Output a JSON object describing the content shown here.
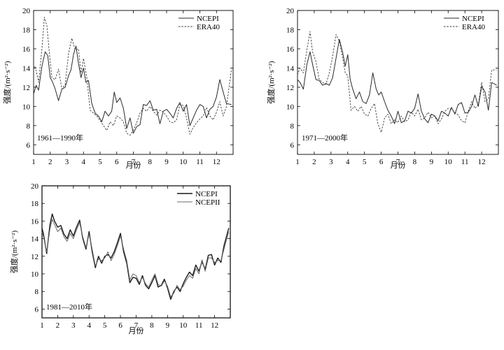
{
  "chart_data": [
    {
      "type": "line",
      "panel_label": "1961—1990年",
      "xlabel": "月份",
      "ylabel": "强度/(m²·s⁻²)",
      "xlim": [
        1,
        13
      ],
      "ylim": [
        5,
        20
      ],
      "x_ticks": [
        "1",
        "2",
        "3",
        "4",
        "5",
        "6",
        "7",
        "8",
        "9",
        "10",
        "11",
        "12"
      ],
      "y_ticks": [
        "6",
        "8",
        "10",
        "12",
        "14",
        "16",
        "18",
        "20"
      ],
      "legend_position": "top-right",
      "series": [
        {
          "name": "NCEPI",
          "style": "solid",
          "x": [
            1.0,
            1.15,
            1.3,
            1.5,
            1.7,
            1.85,
            2.0,
            2.15,
            2.3,
            2.5,
            2.7,
            2.9,
            3.1,
            3.25,
            3.4,
            3.55,
            3.7,
            3.85,
            4.0,
            4.15,
            4.3,
            4.5,
            4.7,
            4.9,
            5.1,
            5.3,
            5.5,
            5.7,
            5.85,
            6.0,
            6.2,
            6.4,
            6.6,
            6.8,
            7.0,
            7.2,
            7.4,
            7.6,
            7.8,
            8.0,
            8.2,
            8.4,
            8.6,
            8.8,
            9.0,
            9.2,
            9.4,
            9.6,
            9.8,
            10.0,
            10.2,
            10.4,
            10.6,
            10.8,
            11.0,
            11.2,
            11.4,
            11.6,
            11.8,
            12.0,
            12.2,
            12.4,
            12.6,
            12.9
          ],
          "values": [
            11.3,
            12.2,
            11.7,
            14.2,
            15.7,
            15.3,
            13.0,
            12.5,
            11.8,
            10.6,
            11.8,
            12.0,
            13.2,
            13.8,
            15.4,
            16.3,
            14.5,
            13.0,
            14.0,
            12.5,
            12.7,
            10.3,
            9.3,
            9.0,
            8.4,
            9.5,
            9.0,
            9.5,
            11.5,
            10.4,
            10.9,
            9.8,
            7.7,
            8.8,
            7.2,
            7.9,
            8.1,
            10.2,
            10.1,
            10.6,
            9.6,
            9.7,
            8.2,
            9.5,
            9.7,
            9.3,
            8.8,
            9.8,
            10.4,
            9.5,
            10.2,
            8.0,
            8.8,
            9.6,
            10.2,
            10.0,
            8.8,
            9.7,
            10.0,
            11.0,
            12.8,
            11.5,
            10.3,
            10.2
          ]
        },
        {
          "name": "ERA40",
          "style": "dashed",
          "x": [
            1.0,
            1.1,
            1.3,
            1.5,
            1.65,
            1.8,
            1.95,
            2.1,
            2.3,
            2.5,
            2.7,
            2.9,
            3.1,
            3.3,
            3.5,
            3.7,
            3.85,
            4.0,
            4.2,
            4.4,
            4.6,
            4.8,
            5.0,
            5.2,
            5.4,
            5.6,
            5.8,
            6.0,
            6.2,
            6.4,
            6.6,
            6.8,
            7.0,
            7.2,
            7.4,
            7.6,
            7.8,
            8.0,
            8.2,
            8.4,
            8.6,
            8.8,
            9.0,
            9.2,
            9.4,
            9.6,
            9.8,
            10.0,
            10.2,
            10.4,
            10.6,
            10.8,
            11.0,
            11.2,
            11.4,
            11.6,
            11.8,
            12.0,
            12.2,
            12.4,
            12.6,
            12.9
          ],
          "values": [
            14.0,
            14.2,
            12.5,
            16.0,
            19.3,
            18.4,
            15.5,
            13.0,
            12.8,
            13.9,
            11.8,
            12.3,
            15.5,
            17.1,
            15.9,
            16.0,
            13.5,
            15.0,
            13.0,
            9.6,
            9.3,
            9.0,
            8.5,
            8.0,
            7.5,
            8.4,
            8.0,
            9.0,
            8.8,
            8.4,
            7.2,
            7.0,
            7.5,
            8.3,
            9.3,
            9.8,
            9.5,
            10.0,
            9.5,
            9.1,
            9.6,
            9.4,
            9.0,
            8.4,
            8.3,
            8.6,
            10.2,
            10.1,
            8.8,
            7.1,
            7.8,
            8.3,
            8.7,
            9.0,
            9.9,
            9.0,
            8.6,
            9.4,
            10.5,
            9.0,
            10.0,
            13.8
          ]
        }
      ]
    },
    {
      "type": "line",
      "panel_label": "1971—2000年",
      "xlabel": "月份",
      "ylabel": "强度/(m²·s⁻²)",
      "xlim": [
        1,
        13
      ],
      "ylim": [
        5,
        20
      ],
      "x_ticks": [
        "1",
        "2",
        "3",
        "4",
        "5",
        "6",
        "7",
        "8",
        "9",
        "10",
        "11",
        "12"
      ],
      "y_ticks": [
        "6",
        "8",
        "10",
        "12",
        "14",
        "16",
        "18",
        "20"
      ],
      "legend_position": "top-right",
      "series": [
        {
          "name": "NCEPI",
          "style": "solid",
          "x": [
            1.0,
            1.15,
            1.35,
            1.55,
            1.75,
            1.9,
            2.1,
            2.3,
            2.5,
            2.7,
            2.9,
            3.1,
            3.3,
            3.5,
            3.7,
            3.85,
            4.0,
            4.15,
            4.3,
            4.5,
            4.7,
            4.9,
            5.1,
            5.3,
            5.5,
            5.7,
            5.85,
            6.0,
            6.2,
            6.4,
            6.6,
            6.8,
            7.0,
            7.2,
            7.4,
            7.6,
            7.8,
            8.0,
            8.2,
            8.4,
            8.6,
            8.8,
            9.0,
            9.2,
            9.4,
            9.6,
            9.8,
            10.0,
            10.2,
            10.4,
            10.6,
            10.8,
            11.0,
            11.2,
            11.4,
            11.6,
            11.8,
            12.0,
            12.2,
            12.4,
            12.6,
            12.9
          ],
          "values": [
            12.8,
            12.5,
            11.8,
            14.3,
            15.7,
            14.4,
            12.8,
            12.7,
            12.2,
            12.4,
            12.2,
            13.0,
            15.0,
            17.0,
            15.6,
            14.2,
            15.4,
            12.8,
            11.8,
            10.8,
            11.5,
            10.5,
            10.3,
            11.2,
            13.5,
            11.8,
            11.2,
            11.5,
            10.5,
            9.6,
            9.0,
            8.2,
            9.5,
            8.3,
            8.5,
            9.5,
            9.3,
            9.8,
            11.3,
            9.5,
            8.7,
            8.3,
            9.2,
            9.0,
            8.5,
            9.5,
            9.3,
            9.0,
            9.9,
            9.2,
            10.2,
            10.4,
            9.3,
            9.4,
            10.0,
            11.2,
            10.0,
            12.1,
            11.5,
            9.6,
            12.5,
            12.2
          ]
        },
        {
          "name": "ERA40",
          "style": "dashed",
          "x": [
            1.0,
            1.15,
            1.35,
            1.55,
            1.75,
            1.9,
            2.1,
            2.3,
            2.5,
            2.7,
            2.9,
            3.1,
            3.3,
            3.5,
            3.7,
            3.85,
            4.0,
            4.2,
            4.4,
            4.6,
            4.8,
            5.0,
            5.2,
            5.4,
            5.6,
            5.8,
            6.0,
            6.2,
            6.4,
            6.6,
            6.8,
            7.0,
            7.2,
            7.4,
            7.6,
            7.8,
            8.0,
            8.2,
            8.4,
            8.6,
            8.8,
            9.0,
            9.2,
            9.4,
            9.6,
            9.8,
            10.0,
            10.2,
            10.4,
            10.6,
            10.8,
            11.0,
            11.2,
            11.4,
            11.6,
            11.8,
            12.0,
            12.2,
            12.4,
            12.6,
            12.9
          ],
          "values": [
            13.3,
            14.0,
            13.5,
            15.8,
            17.8,
            15.7,
            14.7,
            12.8,
            12.5,
            12.3,
            13.5,
            15.2,
            17.5,
            16.8,
            15.0,
            13.5,
            13.2,
            9.6,
            10.0,
            9.5,
            10.0,
            9.2,
            9.0,
            9.8,
            10.3,
            8.2,
            7.3,
            8.8,
            9.2,
            8.2,
            8.6,
            8.3,
            9.0,
            8.4,
            8.6,
            9.4,
            9.0,
            9.7,
            8.6,
            8.8,
            9.4,
            8.8,
            9.0,
            8.2,
            8.7,
            9.5,
            9.8,
            9.7,
            9.4,
            9.1,
            8.5,
            8.3,
            9.5,
            10.5,
            9.8,
            10.2,
            12.5,
            10.5,
            10.8,
            13.8,
            13.8
          ]
        }
      ]
    },
    {
      "type": "line",
      "panel_label": "1981—2010年",
      "xlabel": "月份",
      "ylabel": "强度/(m²·s⁻²)",
      "xlim": [
        1,
        13
      ],
      "ylim": [
        5,
        20
      ],
      "x_ticks": [
        "1",
        "2",
        "3",
        "4",
        "5",
        "6",
        "7",
        "8",
        "9",
        "10",
        "11",
        "12"
      ],
      "y_ticks": [
        "6",
        "8",
        "10",
        "12",
        "14",
        "16",
        "18",
        "20"
      ],
      "legend_position": "top-right",
      "series": [
        {
          "name": "NCEPI",
          "style": "solid",
          "x": [
            1.0,
            1.1,
            1.3,
            1.5,
            1.65,
            1.8,
            2.0,
            2.2,
            2.4,
            2.6,
            2.8,
            3.0,
            3.2,
            3.4,
            3.6,
            3.8,
            4.0,
            4.2,
            4.4,
            4.6,
            4.8,
            5.0,
            5.2,
            5.4,
            5.6,
            5.8,
            6.0,
            6.2,
            6.4,
            6.6,
            6.8,
            7.0,
            7.2,
            7.4,
            7.6,
            7.8,
            8.0,
            8.2,
            8.4,
            8.6,
            8.8,
            9.0,
            9.2,
            9.4,
            9.6,
            9.8,
            10.0,
            10.2,
            10.4,
            10.6,
            10.8,
            11.0,
            11.2,
            11.4,
            11.6,
            11.8,
            12.0,
            12.2,
            12.4,
            12.6,
            12.9
          ],
          "values": [
            15.2,
            14.5,
            12.3,
            15.5,
            16.8,
            16.0,
            15.3,
            15.5,
            14.5,
            14.0,
            15.0,
            14.3,
            15.3,
            16.1,
            14.0,
            12.8,
            14.8,
            12.5,
            10.7,
            12.0,
            11.2,
            12.0,
            12.2,
            11.8,
            12.5,
            13.5,
            14.6,
            12.5,
            11.2,
            9.0,
            9.6,
            9.5,
            8.8,
            9.8,
            8.7,
            8.3,
            9.0,
            9.8,
            8.5,
            8.7,
            9.4,
            8.4,
            7.1,
            8.0,
            8.5,
            8.0,
            8.9,
            9.6,
            10.2,
            9.8,
            11.0,
            10.3,
            11.4,
            10.5,
            12.1,
            12.2,
            11.0,
            11.8,
            11.3,
            13.2,
            15.2
          ]
        },
        {
          "name": "NCEPII",
          "style": "solid-gray",
          "x": [
            1.0,
            1.1,
            1.3,
            1.5,
            1.65,
            1.8,
            2.0,
            2.2,
            2.4,
            2.6,
            2.8,
            3.0,
            3.2,
            3.4,
            3.6,
            3.8,
            4.0,
            4.2,
            4.4,
            4.6,
            4.8,
            5.0,
            5.2,
            5.4,
            5.6,
            5.8,
            6.0,
            6.2,
            6.4,
            6.6,
            6.8,
            7.0,
            7.2,
            7.4,
            7.6,
            7.8,
            8.0,
            8.2,
            8.4,
            8.6,
            8.8,
            9.0,
            9.2,
            9.4,
            9.6,
            9.8,
            10.0,
            10.2,
            10.4,
            10.6,
            10.8,
            11.0,
            11.2,
            11.4,
            11.6,
            11.8,
            12.0,
            12.2,
            12.4,
            12.6,
            12.9
          ],
          "values": [
            14.8,
            14.2,
            12.5,
            15.0,
            16.2,
            15.6,
            14.8,
            15.2,
            14.2,
            13.7,
            14.6,
            14.0,
            15.0,
            15.8,
            14.2,
            13.0,
            14.5,
            12.8,
            10.9,
            11.7,
            11.5,
            11.8,
            12.5,
            11.5,
            12.2,
            13.2,
            14.3,
            12.8,
            11.5,
            9.3,
            10.0,
            9.8,
            9.0,
            9.6,
            8.9,
            8.5,
            9.3,
            10.0,
            8.8,
            8.6,
            9.2,
            8.6,
            7.4,
            7.8,
            8.7,
            8.2,
            8.6,
            9.3,
            9.8,
            9.5,
            10.6,
            10.0,
            11.6,
            10.3,
            11.8,
            11.8,
            11.3,
            11.5,
            11.5,
            12.8,
            14.8
          ]
        }
      ]
    }
  ]
}
